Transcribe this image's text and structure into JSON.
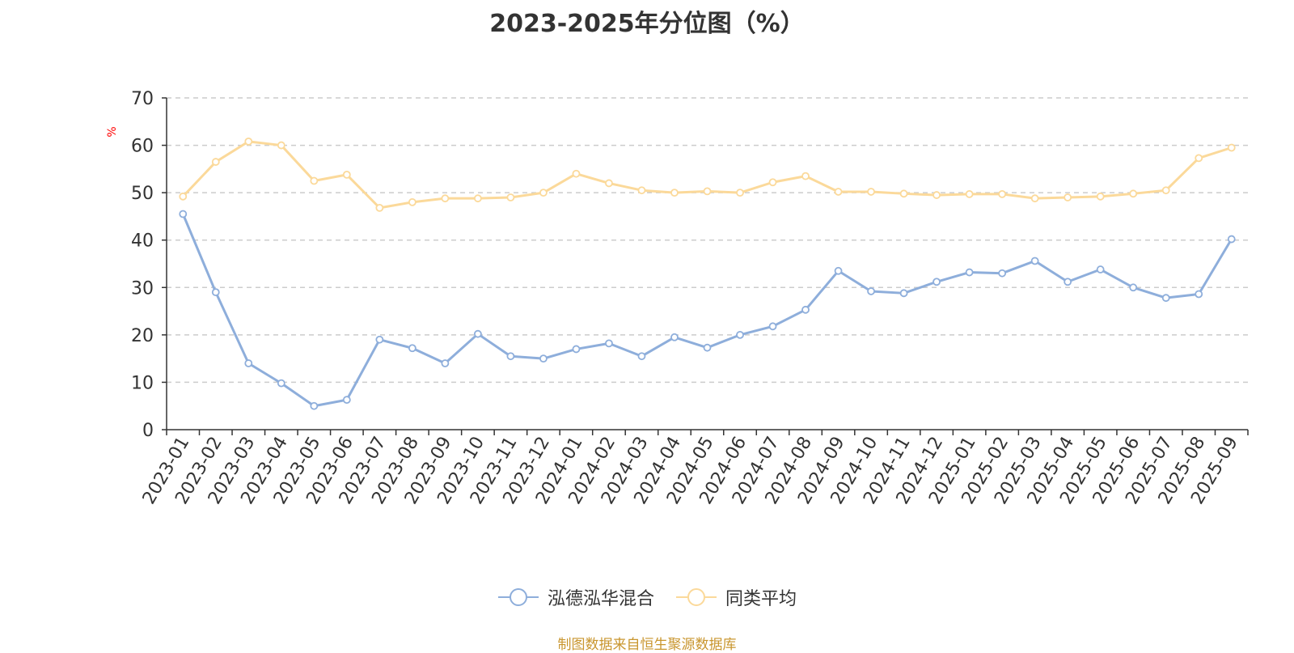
{
  "chart_data": {
    "type": "line",
    "title": "2023-2025年分位图（%）",
    "ylabel": "%",
    "xlabel": "",
    "ylim": [
      0,
      70
    ],
    "yticks": [
      0,
      10,
      20,
      30,
      40,
      50,
      60,
      70
    ],
    "grid": true,
    "legend_position": "bottom",
    "categories": [
      "2023-01",
      "2023-02",
      "2023-03",
      "2023-04",
      "2023-05",
      "2023-06",
      "2023-07",
      "2023-08",
      "2023-09",
      "2023-10",
      "2023-11",
      "2023-12",
      "2024-01",
      "2024-02",
      "2024-03",
      "2024-04",
      "2024-05",
      "2024-06",
      "2024-07",
      "2024-08",
      "2024-09",
      "2024-10",
      "2024-11",
      "2024-12",
      "2025-01",
      "2025-02",
      "2025-03",
      "2025-04",
      "2025-05",
      "2025-06",
      "2025-07",
      "2025-08",
      "2025-09"
    ],
    "series": [
      {
        "name": "泓德泓华混合",
        "color": "#8eaedb",
        "values": [
          45.5,
          29.0,
          14.0,
          9.8,
          5.0,
          6.3,
          19.0,
          17.2,
          14.0,
          20.2,
          15.5,
          15.0,
          17.0,
          18.2,
          15.5,
          19.5,
          17.3,
          20.0,
          21.8,
          25.3,
          33.5,
          29.2,
          28.8,
          31.2,
          33.2,
          33.0,
          35.6,
          31.2,
          33.8,
          30.0,
          27.8,
          28.6,
          40.2
        ]
      },
      {
        "name": "同类平均",
        "color": "#fbd99a",
        "values": [
          49.2,
          56.5,
          60.8,
          60.0,
          52.5,
          53.8,
          46.8,
          48.0,
          48.8,
          48.8,
          49.0,
          50.0,
          54.0,
          52.0,
          50.5,
          50.0,
          50.3,
          50.0,
          52.2,
          53.5,
          50.2,
          50.2,
          49.8,
          49.5,
          49.7,
          49.7,
          48.8,
          49.0,
          49.2,
          49.8,
          50.5,
          57.3,
          59.5
        ]
      }
    ]
  },
  "source_note": "制图数据来自恒生聚源数据库"
}
